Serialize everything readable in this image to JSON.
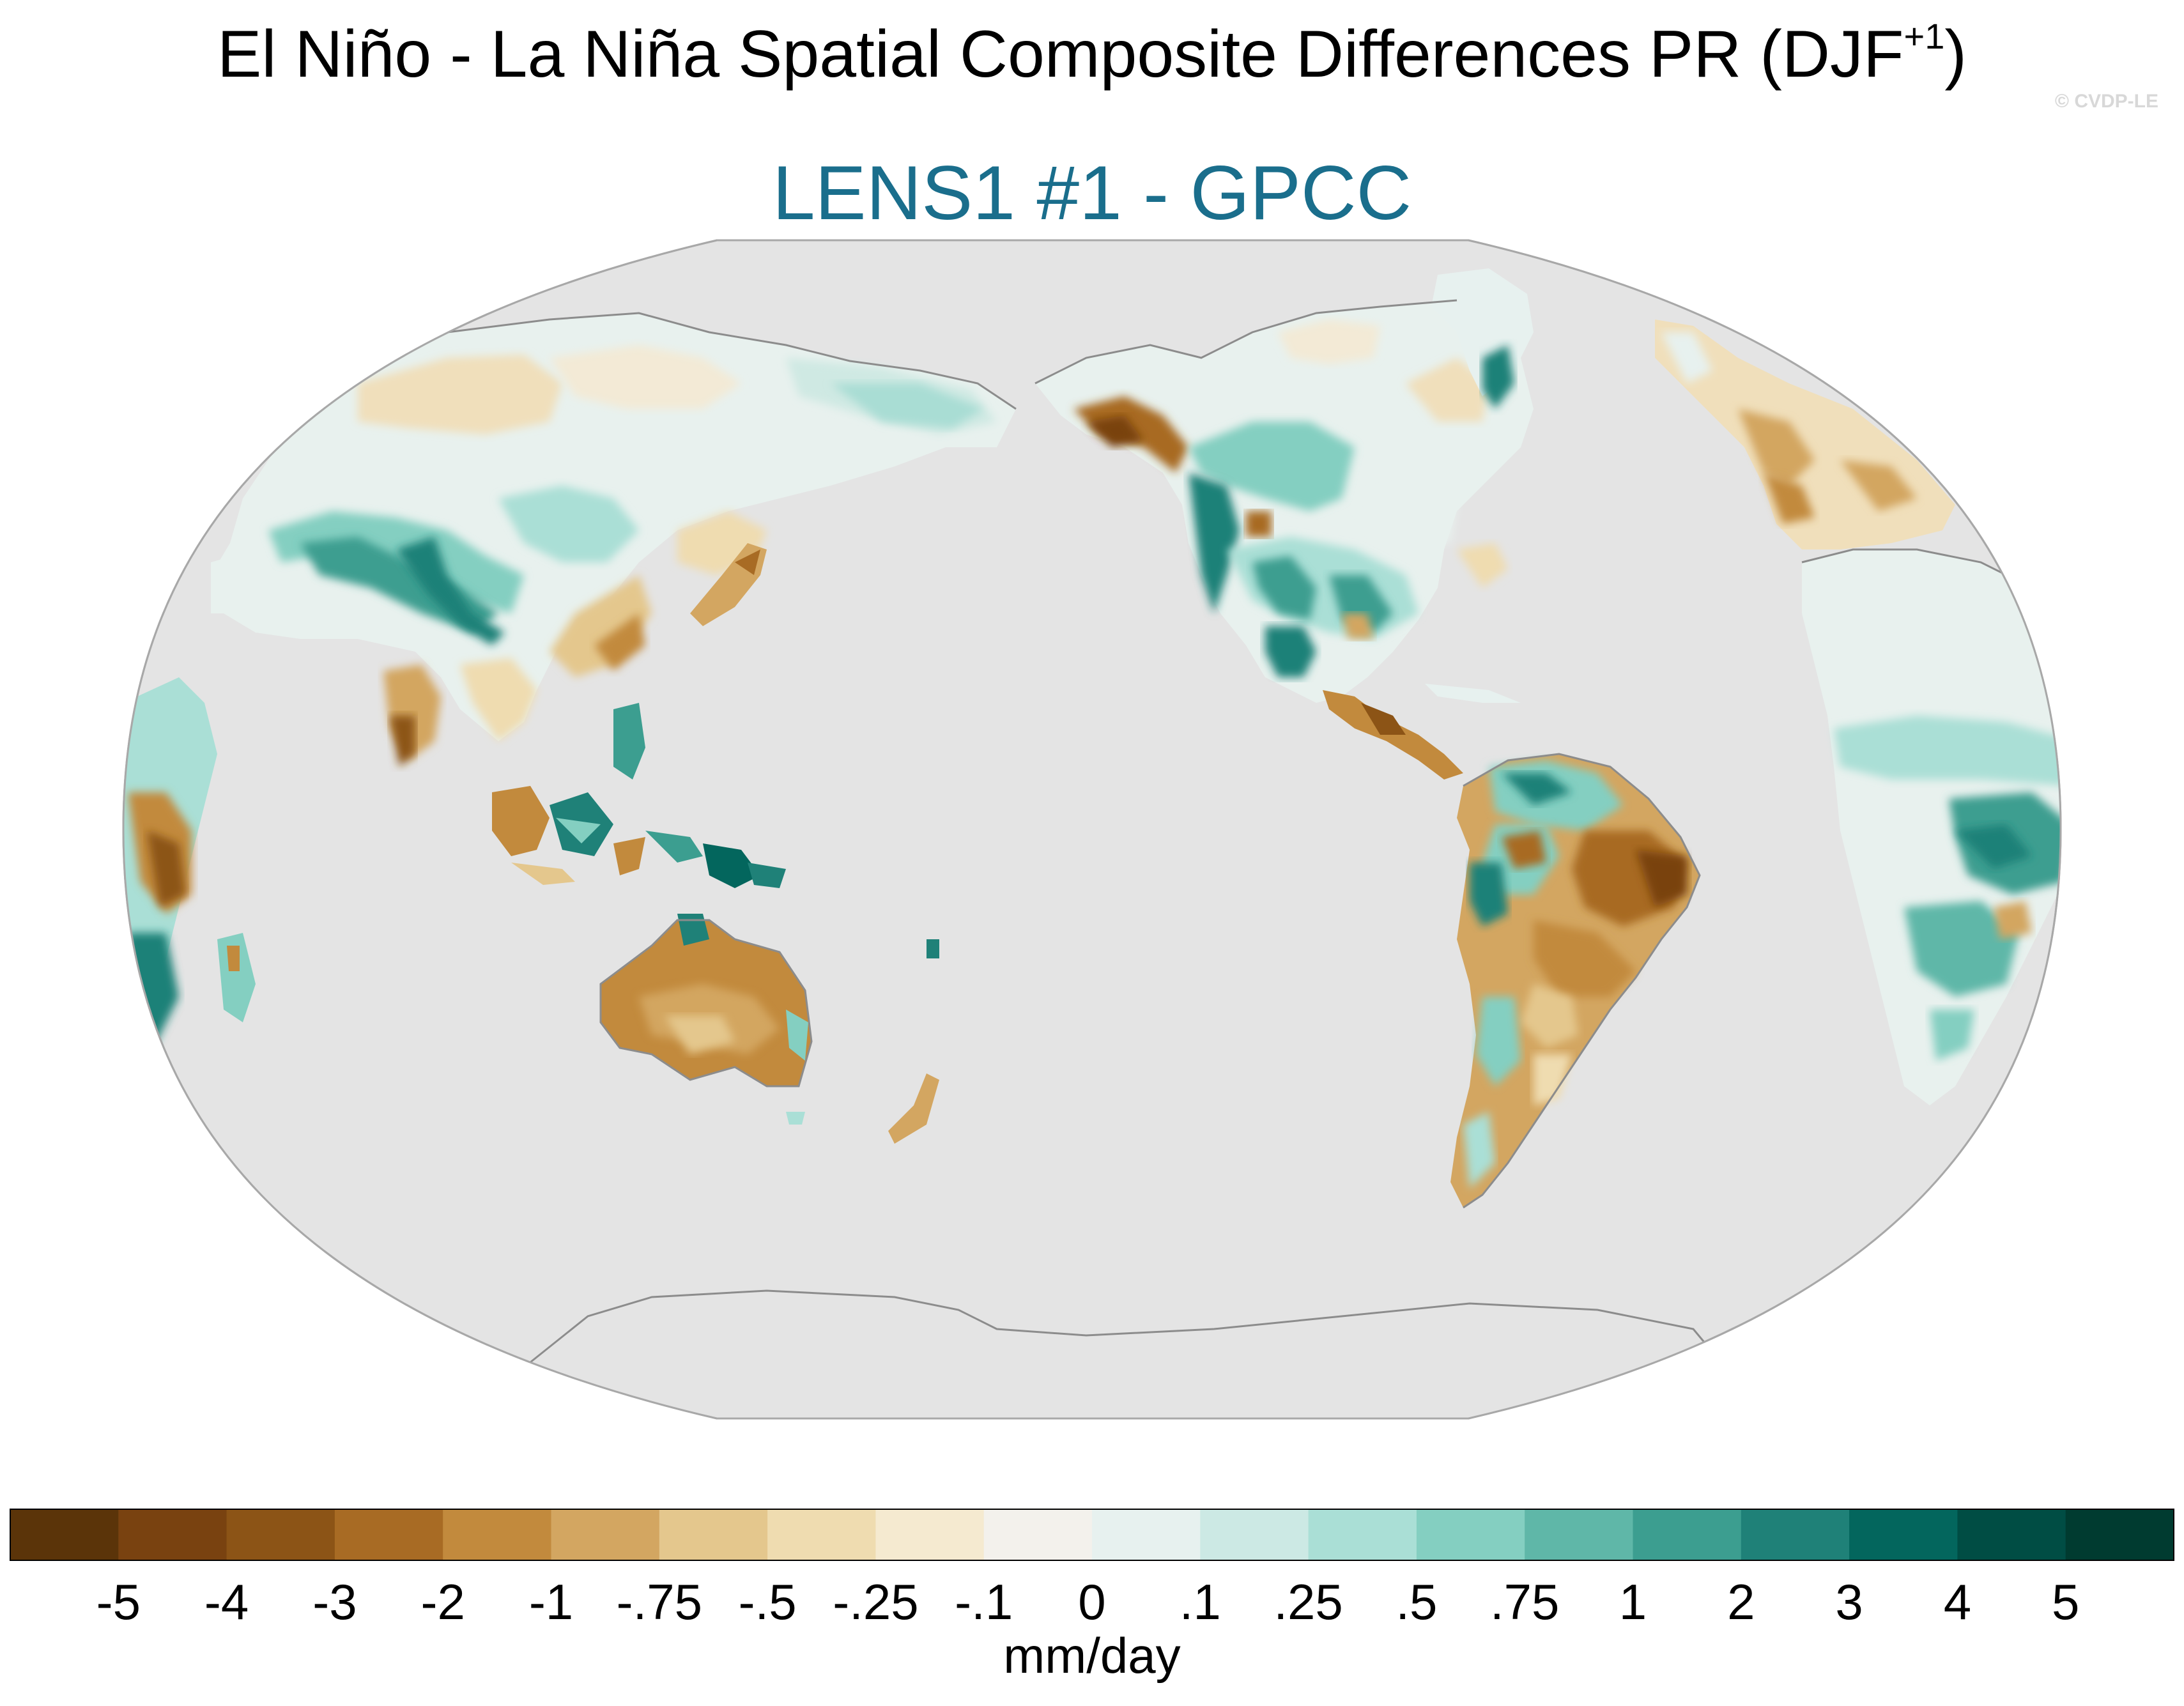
{
  "figure": {
    "title": "El Niño - La Niña Spatial Composite Differences PR (DJF",
    "title_superscript": "+1",
    "title_close": ")",
    "watermark": "© CVDP-LE",
    "subtitle": "LENS1 #1 - GPCC",
    "subtitle_color": "#1a6e8c"
  },
  "map": {
    "projection": "robinson",
    "central_longitude": 180,
    "ocean_color": "#e4e4e4",
    "coastline_color": "#8c8c8c",
    "variable": "precipitation composite difference"
  },
  "colorbar": {
    "units": "mm/day",
    "levels": [
      "-5",
      "-4",
      "-3",
      "-2",
      "-1",
      "-.75",
      "-.5",
      "-.25",
      "-.1",
      "0",
      ".1",
      ".25",
      ".5",
      ".75",
      "1",
      "2",
      "3",
      "4",
      "5"
    ],
    "colors": [
      "#5b3409",
      "#794210",
      "#8c5416",
      "#a86b24",
      "#c28a3d",
      "#d3a661",
      "#e4c78d",
      "#efdcb0",
      "#f5ead0",
      "#f3f1ec",
      "#e7f1ef",
      "#cce9e4",
      "#aadfd6",
      "#84cfc1",
      "#5fb7a8",
      "#3c9e90",
      "#1f8178",
      "#03665d",
      "#004d44",
      "#003b30"
    ]
  }
}
